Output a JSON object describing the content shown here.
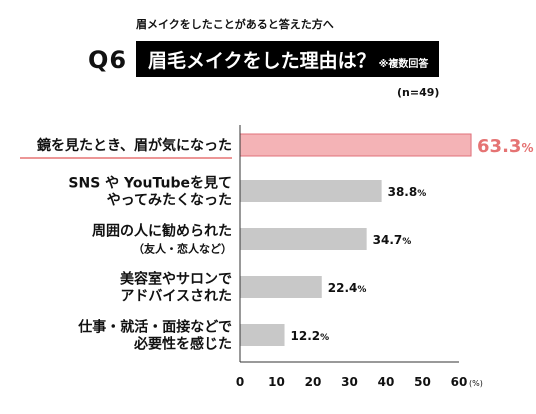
{
  "header": {
    "subtitle": "眉メイクをしたことがあると答えた方へ",
    "question_number": "Q6",
    "title": "眉毛メイクをした理由は？",
    "title_note": "※複数回答",
    "sample_size": "(n=49)"
  },
  "chart_data": {
    "type": "bar",
    "orientation": "horizontal",
    "categories": [
      [
        "鏡を見たとき、眉が気になった"
      ],
      [
        "SNS や YouTubeを見て",
        "やってみたくなった"
      ],
      [
        "周囲の人に勧められた",
        "（友人・恋人など）"
      ],
      [
        "美容室やサロンで",
        "アドバイスされた"
      ],
      [
        "仕事・就活・面接などで",
        "必要性を感じた"
      ]
    ],
    "values": [
      63.3,
      38.8,
      34.7,
      22.4,
      12.2
    ],
    "value_labels": [
      "63.3",
      "38.8",
      "34.7",
      "22.4",
      "12.2"
    ],
    "value_unit": "%",
    "highlight_index": 0,
    "xlim": [
      0,
      60
    ],
    "xticks": [
      0,
      10,
      20,
      30,
      40,
      50,
      60
    ],
    "xunit_label": "(%)",
    "colors": {
      "bar": "#c8c8c8",
      "highlight_bar": "#f4b3b6",
      "highlight_border": "#e0707a",
      "highlight_label": "#e57373",
      "axis": "#333333"
    }
  }
}
